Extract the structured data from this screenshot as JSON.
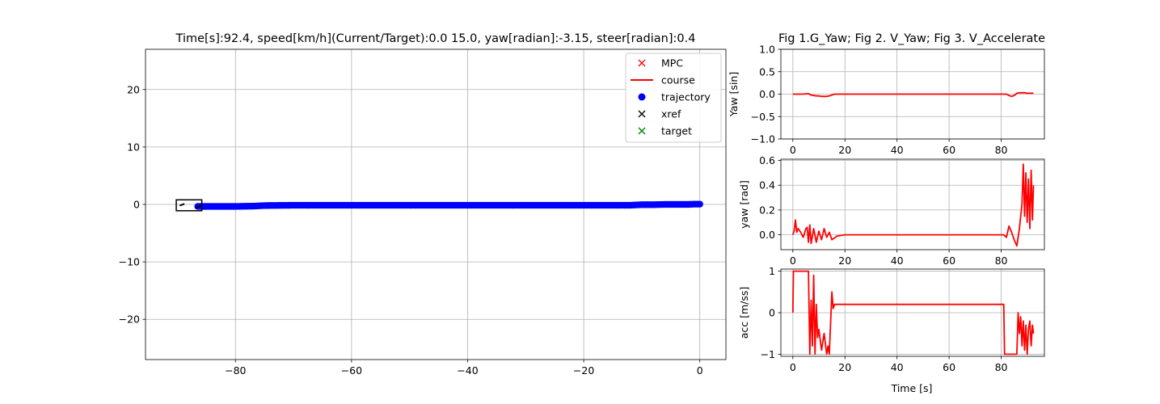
{
  "chart_data": [
    {
      "id": "main",
      "type": "scatter",
      "title": "Time[s]:92.4, speed[km/h](Current/Target):0.0 15.0, yaw[radian]:-3.15, steer[radian]:0.4",
      "xlabel": "",
      "ylabel": "",
      "xlim": [
        -95.5,
        4.5
      ],
      "ylim": [
        -27,
        27
      ],
      "xticks": [
        -80,
        -60,
        -40,
        -20,
        0
      ],
      "xtick_labels": [
        "−80",
        "−60",
        "−40",
        "−20",
        "0"
      ],
      "yticks": [
        -20,
        -10,
        0,
        10,
        20
      ],
      "ytick_labels": [
        "−20",
        "−10",
        "0",
        "10",
        "20"
      ],
      "grid": true,
      "legend_position": "top-right",
      "legend": [
        {
          "label": "MPC",
          "marker": "x",
          "color": "#ff0000"
        },
        {
          "label": "course",
          "marker": "line",
          "color": "#ff0000"
        },
        {
          "label": "trajectory",
          "marker": "o",
          "color": "#0000ff"
        },
        {
          "label": "xref",
          "marker": "x",
          "color": "#000000"
        },
        {
          "label": "target",
          "marker": "x",
          "color": "#008000"
        }
      ],
      "series": [
        {
          "name": "trajectory",
          "color": "#0000ff",
          "x": [
            0,
            -1,
            -2,
            -4,
            -6,
            -8,
            -10,
            -11,
            -12,
            -16,
            -20,
            -25,
            -30,
            -35,
            -40,
            -45,
            -50,
            -55,
            -60,
            -65,
            -70,
            -75,
            -76,
            -77,
            -80,
            -83,
            -85,
            -86.5
          ],
          "y": [
            0.05,
            0.05,
            0.0,
            0.0,
            0.0,
            -0.05,
            -0.05,
            -0.1,
            -0.15,
            -0.15,
            -0.15,
            -0.15,
            -0.15,
            -0.15,
            -0.15,
            -0.15,
            -0.15,
            -0.15,
            -0.15,
            -0.15,
            -0.15,
            -0.2,
            -0.25,
            -0.3,
            -0.35,
            -0.35,
            -0.35,
            -0.35
          ]
        }
      ],
      "vehicle_box": {
        "x_min": -90.2,
        "x_max": -85.8,
        "y_min": -1.1,
        "y_max": 0.8
      }
    },
    {
      "id": "fig1",
      "type": "line",
      "title": "Fig 1.G_Yaw; Fig 2. V_Yaw; Fig 3. V_Accelerate",
      "xlabel": "",
      "ylabel": "Yaw [sin]",
      "xlim": [
        -4.6,
        96.6
      ],
      "ylim": [
        -1.0,
        1.0
      ],
      "xticks": [
        0,
        20,
        40,
        60,
        80
      ],
      "xtick_labels": [
        "0",
        "20",
        "40",
        "60",
        "80"
      ],
      "yticks": [
        -1.0,
        -0.5,
        0.0,
        0.5,
        1.0
      ],
      "ytick_labels": [
        "−1.0",
        "−0.5",
        "0.0",
        "0.5",
        "1.0"
      ],
      "grid": true,
      "series": [
        {
          "color": "#ff0000",
          "x": [
            0,
            2,
            4,
            6,
            7,
            8,
            9,
            10,
            11,
            12,
            13,
            14,
            16,
            20,
            30,
            40,
            50,
            60,
            70,
            80,
            82,
            83,
            84,
            85,
            86,
            87,
            88,
            89,
            90,
            91,
            92.4
          ],
          "y": [
            0.0,
            0.0,
            0.0,
            0.01,
            -0.02,
            -0.03,
            -0.04,
            -0.04,
            -0.05,
            -0.05,
            -0.05,
            -0.04,
            0.0,
            0.0,
            0.0,
            0.0,
            0.0,
            0.0,
            0.0,
            0.0,
            0.0,
            -0.03,
            -0.05,
            -0.03,
            0.02,
            0.03,
            0.03,
            0.03,
            0.02,
            0.02,
            0.02
          ]
        }
      ]
    },
    {
      "id": "fig2",
      "type": "line",
      "title": "",
      "xlabel": "",
      "ylabel": "yaw [rad]",
      "xlim": [
        -4.6,
        96.6
      ],
      "ylim": [
        -0.12,
        0.61
      ],
      "xticks": [
        0,
        20,
        40,
        60,
        80
      ],
      "xtick_labels": [
        "0",
        "20",
        "40",
        "60",
        "80"
      ],
      "yticks": [
        0.0,
        0.2,
        0.4,
        0.6
      ],
      "ytick_labels": [
        "0.0",
        "0.2",
        "0.4",
        "0.6"
      ],
      "grid": true,
      "series": [
        {
          "color": "#ff0000",
          "x": [
            0,
            0.5,
            1,
            1.5,
            2,
            3,
            4,
            5,
            5.5,
            6,
            6.5,
            7,
            8,
            9,
            10,
            11,
            12,
            13,
            14,
            15,
            17,
            20,
            30,
            40,
            50,
            60,
            70,
            80,
            81,
            82,
            83,
            84,
            85,
            86,
            87,
            88,
            88.5,
            89,
            89.5,
            90,
            90.5,
            91,
            91.5,
            92,
            92.4
          ],
          "y": [
            0.0,
            0.03,
            0.12,
            0.02,
            0.05,
            0.02,
            -0.02,
            0.05,
            0.06,
            -0.06,
            0.08,
            -0.07,
            0.05,
            -0.06,
            0.03,
            -0.04,
            0.05,
            -0.02,
            0.02,
            -0.04,
            -0.01,
            0.0,
            0.0,
            0.0,
            0.0,
            0.0,
            0.0,
            0.0,
            0.0,
            -0.02,
            0.07,
            0.02,
            -0.04,
            -0.09,
            0.05,
            0.25,
            0.57,
            0.15,
            0.5,
            0.1,
            0.45,
            0.05,
            0.52,
            0.12,
            0.4
          ]
        }
      ]
    },
    {
      "id": "fig3",
      "type": "line",
      "title": "",
      "xlabel": "Time [s]",
      "ylabel": "acc [m/ss]",
      "xlim": [
        -4.6,
        96.6
      ],
      "ylim": [
        -1.05,
        1.05
      ],
      "xticks": [
        0,
        20,
        40,
        60,
        80
      ],
      "xtick_labels": [
        "0",
        "20",
        "40",
        "60",
        "80"
      ],
      "yticks": [
        -1,
        0,
        1
      ],
      "ytick_labels": [
        "−1",
        "0",
        "1"
      ],
      "grid": true,
      "series": [
        {
          "color": "#ff0000",
          "x": [
            0,
            0.2,
            6,
            6.5,
            7,
            7.5,
            8,
            8.5,
            9,
            9.5,
            10,
            11,
            12,
            13,
            13.5,
            14,
            15,
            15.5,
            16,
            20,
            30,
            40,
            50,
            60,
            70,
            80,
            81,
            81.3,
            82,
            84,
            85,
            86,
            86.5,
            87,
            87.5,
            88,
            88.5,
            89,
            89.5,
            90,
            90.5,
            91,
            91.5,
            92,
            92.4
          ],
          "y": [
            0.0,
            1.0,
            1.0,
            -1.0,
            0.3,
            -0.8,
            0.9,
            -1.0,
            0.2,
            -0.6,
            -0.4,
            -0.9,
            -0.5,
            -1.0,
            -0.8,
            -1.0,
            0.5,
            0.1,
            0.2,
            0.2,
            0.2,
            0.2,
            0.2,
            0.2,
            0.2,
            0.2,
            0.2,
            -1.0,
            -1.0,
            -1.0,
            -1.0,
            -1.0,
            0.0,
            -0.5,
            -0.1,
            -0.8,
            -0.2,
            -0.9,
            -0.3,
            -1.0,
            -0.4,
            -0.2,
            -0.8,
            -0.3,
            -0.5
          ]
        }
      ]
    }
  ]
}
